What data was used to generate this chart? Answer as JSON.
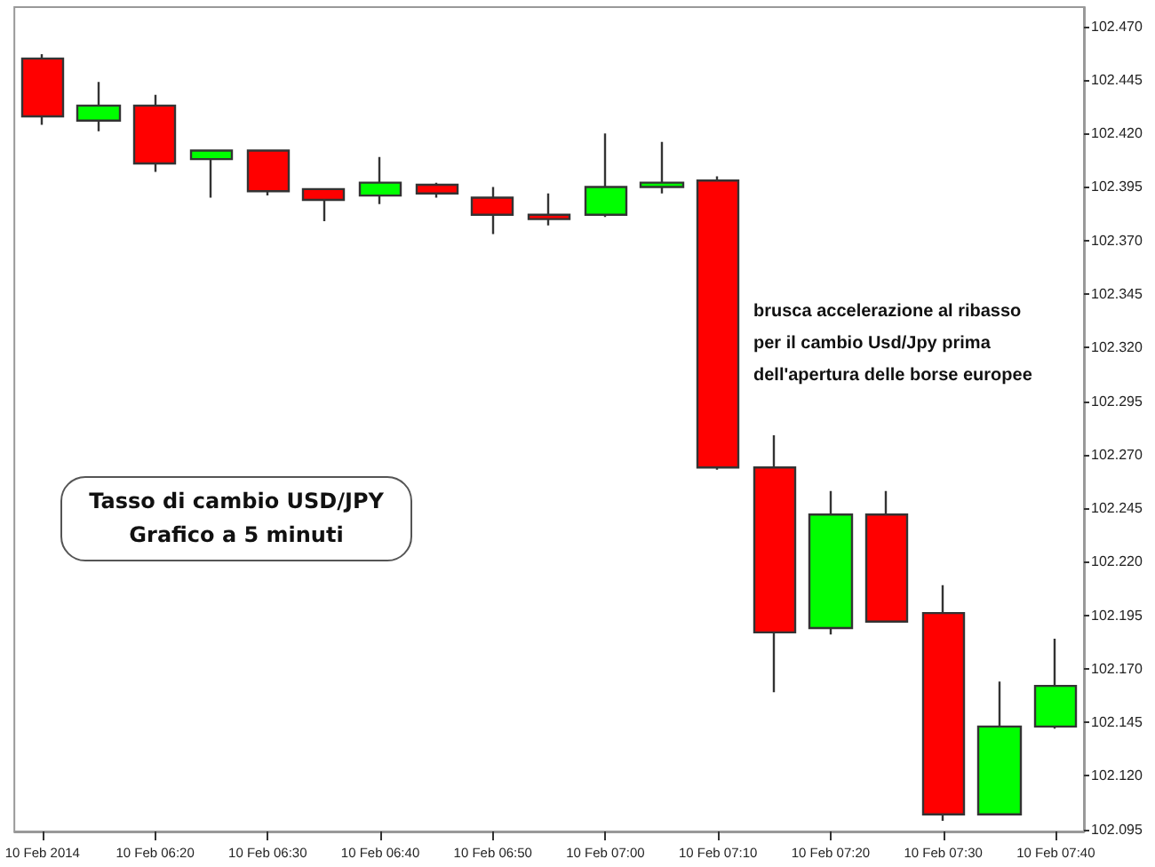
{
  "chart_data": {
    "type": "candlestick",
    "title": "Tasso di cambio USD/JPY\nGrafico a 5 minuti",
    "annotations": [
      "brusca accelerazione al ribasso\nper il cambio Usd/Jpy prima\ndell'apertura delle borse europee"
    ],
    "categories": [
      "10 Feb 2014",
      null,
      "10 Feb 06:20",
      null,
      "10 Feb 06:30",
      null,
      "10 Feb 06:40",
      null,
      "10 Feb 06:50",
      null,
      "10 Feb 07:00",
      null,
      "10 Feb 07:10",
      null,
      "10 Feb 07:20",
      null,
      "10 Feb 07:30",
      null,
      "10 Feb 07:40"
    ],
    "ohlc": [
      [
        102.455,
        102.457,
        102.424,
        102.428
      ],
      [
        102.426,
        102.444,
        102.421,
        102.433
      ],
      [
        102.433,
        102.438,
        102.402,
        102.406
      ],
      [
        102.408,
        102.412,
        102.39,
        102.412
      ],
      [
        102.412,
        102.412,
        102.391,
        102.393
      ],
      [
        102.394,
        102.394,
        102.379,
        102.389
      ],
      [
        102.391,
        102.409,
        102.387,
        102.397
      ],
      [
        102.396,
        102.397,
        102.39,
        102.392
      ],
      [
        102.39,
        102.395,
        102.373,
        102.382
      ],
      [
        102.382,
        102.392,
        102.377,
        102.38
      ],
      [
        102.382,
        102.42,
        102.381,
        102.395
      ],
      [
        102.395,
        102.416,
        102.392,
        102.397
      ],
      [
        102.398,
        102.4,
        102.263,
        102.264
      ],
      [
        102.264,
        102.279,
        102.159,
        102.187
      ],
      [
        102.189,
        102.253,
        102.186,
        102.242
      ],
      [
        102.242,
        102.253,
        102.192,
        102.192
      ],
      [
        102.196,
        102.209,
        102.099,
        102.102
      ],
      [
        102.102,
        102.164,
        102.102,
        102.143
      ],
      [
        102.143,
        102.184,
        102.142,
        102.162
      ]
    ],
    "colors": [
      "#ff0000",
      "#00ff00",
      "#ff0000",
      "#00ff00",
      "#ff0000",
      "#ff0000",
      "#00ff00",
      "#ff0000",
      "#ff0000",
      "#ff0000",
      "#00ff00",
      "#00ff00",
      "#ff0000",
      "#ff0000",
      "#00ff00",
      "#ff0000",
      "#ff0000",
      "#00ff00",
      "#00ff00"
    ],
    "ylim": [
      102.094,
      102.479
    ],
    "yticks": [
      {
        "value": 102.095,
        "label": "102.095"
      },
      {
        "value": 102.12,
        "label": "102.120"
      },
      {
        "value": 102.145,
        "label": "102.145"
      },
      {
        "value": 102.17,
        "label": "102.170"
      },
      {
        "value": 102.195,
        "label": "102.195"
      },
      {
        "value": 102.22,
        "label": "102.220"
      },
      {
        "value": 102.245,
        "label": "102.245"
      },
      {
        "value": 102.27,
        "label": "102.270"
      },
      {
        "value": 102.295,
        "label": "102.295"
      },
      {
        "value": 102.32,
        "label": "102.320"
      },
      {
        "value": 102.345,
        "label": "102.345"
      },
      {
        "value": 102.37,
        "label": "102.370"
      },
      {
        "value": 102.395,
        "label": "102.395"
      },
      {
        "value": 102.42,
        "label": "102.420"
      },
      {
        "value": 102.445,
        "label": "102.445"
      },
      {
        "value": 102.47,
        "label": "102.470"
      }
    ],
    "grid": false
  }
}
